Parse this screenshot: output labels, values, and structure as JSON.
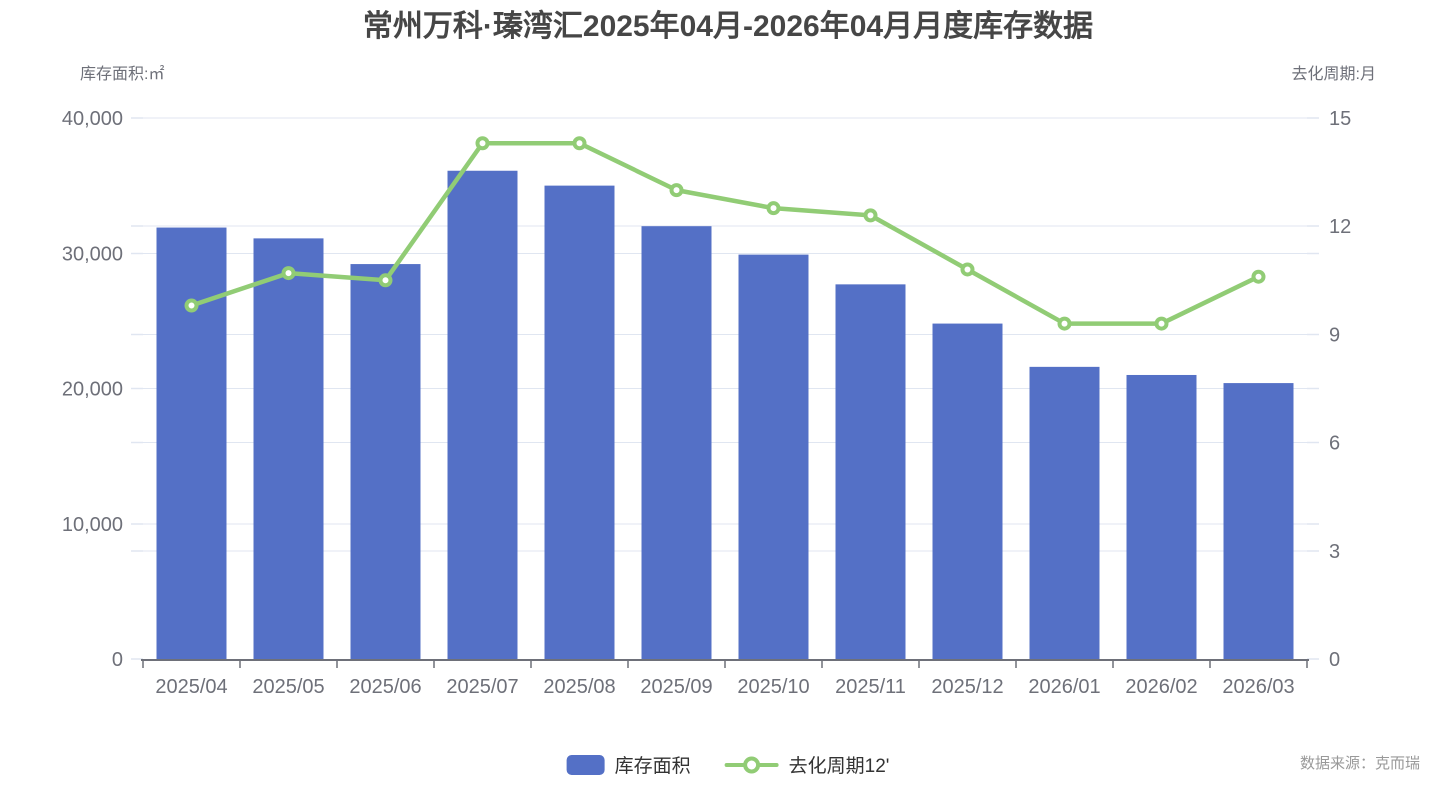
{
  "title": "常州万科·瑧湾汇2025年04月-2026年04月月度库存数据",
  "source": {
    "text": "数据来源：克而瑞"
  },
  "legend": {
    "bar_label": "库存面积",
    "line_label": "去化周期12'"
  },
  "colors": {
    "bar": "#5470C6",
    "line": "#91CC75",
    "marker_fill": "#FFFFFF",
    "grid": "#E0E6F1",
    "axis_line": "#6E7079",
    "axis_text": "#6E7079",
    "title_text": "#464646",
    "legend_text": "#333333",
    "source_text": "#999999"
  },
  "chart_data": {
    "type": "bar",
    "title": "常州万科·瑧湾汇2025年04月-2026年04月月度库存数据",
    "categories": [
      "2025/04",
      "2025/05",
      "2025/06",
      "2025/07",
      "2025/08",
      "2025/09",
      "2025/10",
      "2025/11",
      "2025/12",
      "2026/01",
      "2026/02",
      "2026/03"
    ],
    "series": [
      {
        "name": "库存面积",
        "type": "bar",
        "y_axis": "left",
        "values": [
          31900,
          31100,
          29200,
          36100,
          35000,
          32000,
          29900,
          27700,
          24800,
          21600,
          21000,
          20400
        ]
      },
      {
        "name": "去化周期12'",
        "type": "line",
        "y_axis": "right",
        "values": [
          9.8,
          10.7,
          10.5,
          14.3,
          14.3,
          13.0,
          12.5,
          12.3,
          10.8,
          9.3,
          9.3,
          10.6
        ]
      }
    ],
    "ylabel_left": "库存面积:㎡",
    "ylabel_right": "去化周期:月",
    "ylim_left": [
      0,
      40000
    ],
    "ylim_right": [
      0,
      15
    ],
    "left_ticks": [
      0,
      10000,
      20000,
      30000,
      40000
    ],
    "left_tick_labels": [
      "0",
      "10,000",
      "20,000",
      "30,000",
      "40,000"
    ],
    "right_ticks": [
      0,
      3,
      6,
      9,
      12,
      15
    ],
    "right_tick_labels": [
      "0",
      "3",
      "6",
      "9",
      "12",
      "15"
    ],
    "grid": true,
    "legend_position": "bottom"
  }
}
